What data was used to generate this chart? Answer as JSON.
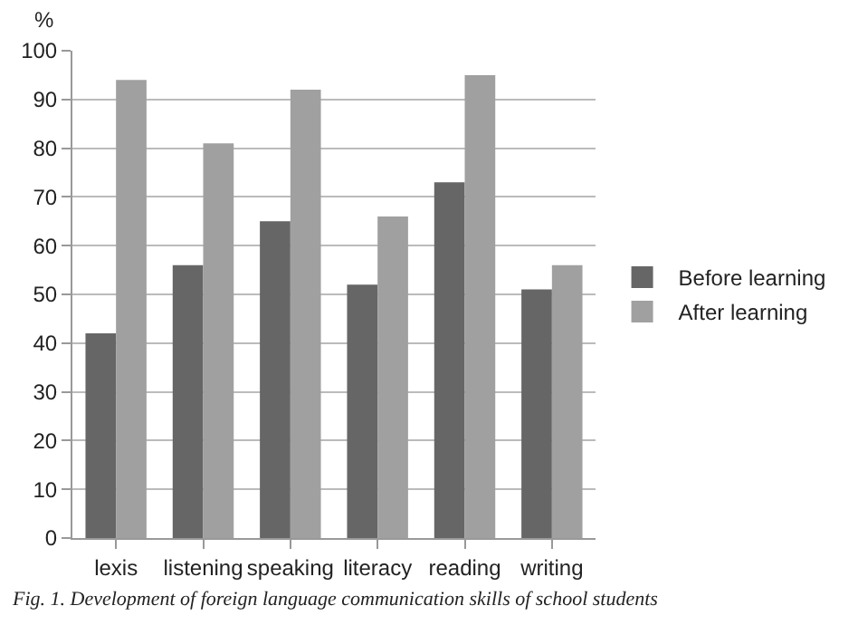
{
  "chart_data": {
    "type": "bar",
    "ylabel": "%",
    "categories": [
      "lexis",
      "listening",
      "speaking",
      "literacy",
      "reading",
      "writing"
    ],
    "series": [
      {
        "name": "Before learning",
        "color": "#666666",
        "values": [
          42,
          56,
          65,
          52,
          73,
          51
        ]
      },
      {
        "name": "After learning",
        "color": "#a0a0a0",
        "values": [
          94,
          81,
          92,
          66,
          95,
          56
        ]
      }
    ],
    "ylim": [
      0,
      100
    ],
    "yticks": [
      0,
      10,
      20,
      30,
      40,
      50,
      60,
      70,
      80,
      90,
      100
    ],
    "grid": "y",
    "legend": "right",
    "annotations": [
      "Fig. 1. Development of foreign language communication skills of school students"
    ]
  }
}
